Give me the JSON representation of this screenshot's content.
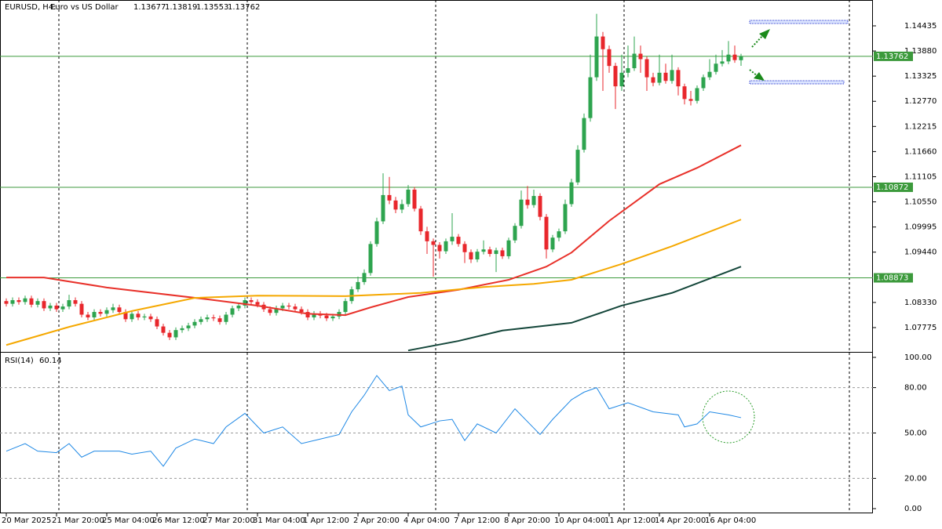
{
  "chart_data": [
    {
      "type": "candlestick",
      "symbol": "EURUSD, H4:",
      "description": "Euro vs US Dollar",
      "last_bar": [
        1.13677,
        1.13819,
        1.13553,
        1.13762
      ],
      "categories": [
        "20 Mar 2025",
        null,
        null,
        null,
        null,
        null,
        null,
        null,
        "21 Mar 20:00",
        null,
        null,
        null,
        null,
        null,
        null,
        null,
        "25 Mar 04:00",
        null,
        null,
        null,
        null,
        null,
        null,
        null,
        "26 Mar 12:00",
        null,
        null,
        null,
        null,
        null,
        null,
        null,
        "27 Mar 20:00",
        null,
        null,
        null,
        null,
        null,
        null,
        null,
        "31 Mar 04:00",
        null,
        null,
        null,
        null,
        null,
        null,
        null,
        "1 Apr 12:00",
        null,
        null,
        null,
        null,
        null,
        null,
        null,
        "2 Apr 20:00",
        null,
        null,
        null,
        null,
        null,
        null,
        null,
        "4 Apr 04:00",
        null,
        null,
        null,
        null,
        null,
        null,
        null,
        "7 Apr 12:00",
        null,
        null,
        null,
        null,
        null,
        null,
        null,
        "8 Apr 20:00",
        null,
        null,
        null,
        null,
        null,
        null,
        null,
        "10 Apr 04:00",
        null,
        null,
        null,
        null,
        null,
        null,
        null,
        "11 Apr 12:00",
        null,
        null,
        null,
        null,
        null,
        null,
        null,
        "14 Apr 20:00",
        null,
        null,
        null,
        null,
        null,
        null,
        null,
        "16 Apr 04:00",
        null,
        null,
        null,
        null,
        null
      ],
      "open": [
        1.0836,
        1.083,
        1.0838,
        1.0834,
        1.0842,
        1.0828,
        1.0836,
        1.082,
        1.0826,
        1.0818,
        1.0824,
        1.0838,
        1.083,
        1.0806,
        1.08,
        1.0812,
        1.0808,
        1.0816,
        1.0822,
        1.0812,
        1.0796,
        1.0808,
        1.08,
        1.0802,
        1.0796,
        1.078,
        1.0766,
        1.0756,
        1.0772,
        1.0776,
        1.0782,
        1.079,
        1.0796,
        1.08,
        1.0798,
        1.079,
        1.0806,
        1.082,
        1.0826,
        1.0838,
        1.0834,
        1.0828,
        1.0818,
        1.081,
        1.082,
        1.0826,
        1.0824,
        1.0818,
        1.0812,
        1.08,
        1.0808,
        1.0804,
        1.0798,
        1.0802,
        1.0812,
        1.0836,
        1.0862,
        1.0878,
        1.0898,
        1.0962,
        1.1012,
        1.107,
        1.1058,
        1.1038,
        1.105,
        1.1082,
        1.104,
        1.099,
        1.0968,
        1.096,
        1.0946,
        1.0968,
        1.0978,
        1.0962,
        1.0944,
        1.0928,
        1.0945,
        1.095,
        1.094,
        1.0948,
        1.0935,
        1.097,
        1.1002,
        1.106,
        1.1048,
        1.1068,
        1.1022,
        1.095,
        1.0976,
        1.099,
        1.105,
        1.1098,
        1.117,
        1.124,
        1.133,
        1.142,
        1.1392,
        1.1355,
        1.131,
        1.134,
        1.135,
        1.1382,
        1.137,
        1.133,
        1.1318,
        1.134,
        1.1322,
        1.1346,
        1.131,
        1.1282,
        1.1278,
        1.1306,
        1.133,
        1.1342,
        1.136,
        1.1365,
        1.138,
        1.13677
      ],
      "high": [
        1.0842,
        1.0844,
        1.0844,
        1.0848,
        1.0848,
        1.0842,
        1.0842,
        1.0832,
        1.0832,
        1.083,
        1.085,
        1.0844,
        1.0836,
        1.0812,
        1.0818,
        1.0818,
        1.0822,
        1.083,
        1.0828,
        1.0818,
        1.0814,
        1.0814,
        1.0808,
        1.0808,
        1.0802,
        1.0786,
        1.0772,
        1.0778,
        1.0782,
        1.0788,
        1.0796,
        1.0802,
        1.0806,
        1.0806,
        1.0804,
        1.0812,
        1.0826,
        1.0832,
        1.0844,
        1.0844,
        1.084,
        1.0834,
        1.0824,
        1.0826,
        1.0832,
        1.0832,
        1.083,
        1.0824,
        1.0818,
        1.0814,
        1.0814,
        1.081,
        1.0808,
        1.0818,
        1.0842,
        1.0868,
        1.089,
        1.0906,
        1.0968,
        1.102,
        1.1118,
        1.111,
        1.1066,
        1.106,
        1.1092,
        1.1088,
        1.1046,
        1.1,
        1.0974,
        1.0966,
        1.0974,
        1.103,
        1.0984,
        1.0968,
        1.095,
        1.0951,
        1.097,
        1.0956,
        1.0954,
        1.0954,
        1.0976,
        1.1008,
        1.108,
        1.109,
        1.1082,
        1.1074,
        1.1028,
        1.0982,
        1.0996,
        1.106,
        1.1106,
        1.118,
        1.125,
        1.138,
        1.147,
        1.143,
        1.14,
        1.1362,
        1.138,
        1.14,
        1.142,
        1.14,
        1.1376,
        1.134,
        1.138,
        1.136,
        1.138,
        1.1352,
        1.1316,
        1.13,
        1.1312,
        1.1336,
        1.137,
        1.138,
        1.139,
        1.141,
        1.14,
        1.13819
      ],
      "low": [
        1.0824,
        1.0824,
        1.0828,
        1.0828,
        1.0822,
        1.0822,
        1.0814,
        1.0814,
        1.0812,
        1.0812,
        1.0818,
        1.0824,
        1.08,
        1.0794,
        1.0794,
        1.0802,
        1.0802,
        1.081,
        1.0806,
        1.079,
        1.079,
        1.0794,
        1.0794,
        1.079,
        1.0774,
        1.076,
        1.075,
        1.075,
        1.0766,
        1.077,
        1.0776,
        1.0784,
        1.079,
        1.0792,
        1.0784,
        1.0784,
        1.08,
        1.0814,
        1.082,
        1.0828,
        1.0822,
        1.0812,
        1.0804,
        1.0804,
        1.0814,
        1.0818,
        1.0812,
        1.0806,
        1.0794,
        1.0794,
        1.0798,
        1.0792,
        1.0792,
        1.0796,
        1.0806,
        1.083,
        1.0856,
        1.0872,
        1.0892,
        1.0956,
        1.1006,
        1.105,
        1.103,
        1.103,
        1.1044,
        1.1034,
        1.0982,
        1.094,
        1.089,
        1.093,
        1.094,
        1.096,
        1.0956,
        1.092,
        1.092,
        1.0922,
        1.0939,
        1.0934,
        1.09,
        1.0929,
        1.0929,
        1.0964,
        1.0996,
        1.104,
        1.1042,
        1.1014,
        1.093,
        1.0944,
        1.0968,
        1.0984,
        1.1044,
        1.1092,
        1.1164,
        1.1232,
        1.1322,
        1.13,
        1.134,
        1.126,
        1.13,
        1.133,
        1.1344,
        1.134,
        1.13,
        1.131,
        1.1312,
        1.1316,
        1.1316,
        1.129,
        1.127,
        1.1268,
        1.1272,
        1.13,
        1.1324,
        1.1336,
        1.1354,
        1.1359,
        1.1362,
        1.13553
      ],
      "close": [
        1.083,
        1.0838,
        1.0834,
        1.0842,
        1.0828,
        1.0836,
        1.082,
        1.0826,
        1.0818,
        1.0824,
        1.0838,
        1.083,
        1.0806,
        1.08,
        1.0812,
        1.0808,
        1.0816,
        1.0822,
        1.0812,
        1.0796,
        1.0808,
        1.08,
        1.0802,
        1.0796,
        1.078,
        1.0766,
        1.0756,
        1.0772,
        1.0776,
        1.0782,
        1.079,
        1.0796,
        1.08,
        1.0798,
        1.079,
        1.0806,
        1.082,
        1.0826,
        1.0838,
        1.0834,
        1.0828,
        1.0818,
        1.081,
        1.082,
        1.0826,
        1.0824,
        1.0818,
        1.0812,
        1.08,
        1.0808,
        1.0804,
        1.0798,
        1.0802,
        1.0812,
        1.0836,
        1.0862,
        1.0878,
        1.0898,
        1.0962,
        1.1012,
        1.107,
        1.1058,
        1.1038,
        1.105,
        1.1082,
        1.104,
        1.099,
        1.0968,
        1.096,
        1.0946,
        1.0968,
        1.0978,
        1.0962,
        1.0944,
        1.0928,
        1.0945,
        1.095,
        1.094,
        1.0948,
        1.0935,
        1.097,
        1.1002,
        1.106,
        1.1048,
        1.1068,
        1.1022,
        1.095,
        1.0976,
        1.099,
        1.105,
        1.1098,
        1.117,
        1.124,
        1.133,
        1.142,
        1.1392,
        1.1355,
        1.131,
        1.134,
        1.135,
        1.1382,
        1.137,
        1.133,
        1.1318,
        1.134,
        1.1322,
        1.1346,
        1.131,
        1.1282,
        1.1278,
        1.1306,
        1.133,
        1.1342,
        1.136,
        1.1365,
        1.138,
        1.1368,
        1.13762
      ],
      "up_color": "#2ea44f",
      "down_color": "#e8272c",
      "series": [
        {
          "color": "#e8312a",
          "x": [
            0,
            6,
            16,
            32,
            40,
            48,
            54,
            58,
            64,
            72,
            80,
            86,
            90,
            96,
            104,
            110,
            117
          ],
          "values": [
            1.0888,
            1.0888,
            1.0866,
            1.084,
            1.0826,
            1.0808,
            1.0805,
            1.0822,
            1.0845,
            1.0861,
            1.0883,
            1.0912,
            1.0943,
            1.1013,
            1.1094,
            1.113,
            1.118
          ]
        },
        {
          "color": "#f5a800",
          "x": [
            0,
            10,
            20,
            30,
            40,
            54,
            66,
            76,
            84,
            90,
            98,
            106,
            117
          ],
          "values": [
            1.0739,
            1.0779,
            1.0814,
            1.0843,
            1.0848,
            1.0847,
            1.0854,
            1.0867,
            1.0874,
            1.0883,
            1.0918,
            1.0957,
            1.1016
          ]
        },
        {
          "color": "#14463a",
          "x": [
            64,
            72,
            79,
            90,
            98,
            106,
            117
          ],
          "values": [
            1.0727,
            1.0748,
            1.0771,
            1.0788,
            1.0826,
            1.0854,
            1.0912
          ]
        }
      ],
      "hlines": [
        1.13762,
        1.10872,
        1.08873
      ],
      "hline_color": "#3c9a3c",
      "ylim": [
        1.07256,
        1.14971
      ],
      "yticks": [
        1.14435,
        {
          "value": 1.1388,
          "label": "1.13880"
        },
        1.13325,
        {
          "value": 1.1277,
          "label": "1.12770"
        },
        1.12215,
        {
          "value": 1.1166,
          "label": "1.11660"
        },
        1.11105,
        {
          "value": 1.1055,
          "label": "1.10550"
        },
        1.09995,
        {
          "value": 1.0944,
          "label": "1.09440"
        },
        {
          "value": 1.0833,
          "label": "1.08330"
        },
        1.07775
      ]
    },
    {
      "type": "line",
      "title": "RSI(14)",
      "last": 60.14,
      "color": "#1e88e5",
      "x": [
        0,
        3,
        5,
        8,
        10,
        12,
        14,
        18,
        20,
        23,
        25,
        27,
        30,
        33,
        35,
        38,
        41,
        44,
        47,
        50,
        53,
        55,
        57,
        59,
        61,
        63,
        64,
        66,
        69,
        71,
        73,
        75,
        78,
        81,
        85,
        87,
        90,
        92,
        94,
        96,
        99,
        103,
        107,
        108,
        110,
        112,
        115,
        117
      ],
      "values": [
        38,
        43,
        38,
        37,
        43,
        34,
        38,
        38,
        36,
        38,
        28,
        40,
        46,
        43,
        54,
        63,
        50,
        54,
        43,
        46,
        49,
        64,
        75,
        88,
        78,
        81,
        62,
        54,
        58,
        59,
        45,
        56,
        50,
        66,
        49,
        59,
        72,
        77,
        80,
        66,
        70,
        64,
        62,
        54,
        56,
        64,
        62,
        60.14
      ],
      "ylim": [
        0,
        100
      ],
      "yticks": [
        {
          "value": 100,
          "label": "100.00"
        },
        {
          "value": 80,
          "label": "80.00"
        },
        {
          "value": 50,
          "label": "50.00"
        },
        {
          "value": 20,
          "label": "20.00"
        },
        {
          "value": 0,
          "label": "0.00"
        }
      ]
    }
  ]
}
